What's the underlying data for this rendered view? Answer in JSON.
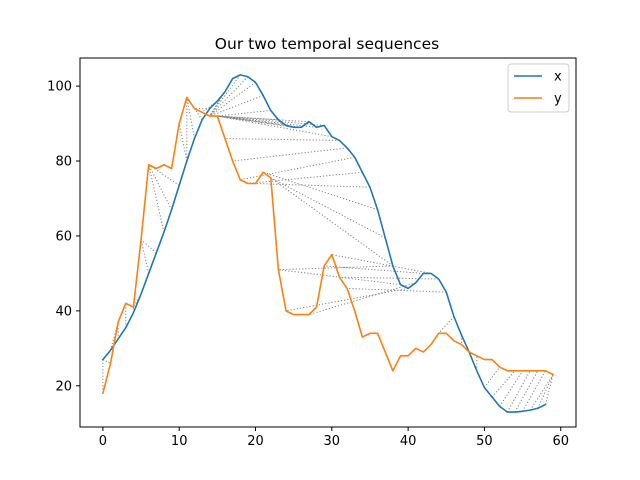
{
  "chart_data": {
    "type": "line",
    "title": "Our two temporal sequences",
    "xlabel": "",
    "ylabel": "",
    "xlim": [
      -3,
      62
    ],
    "ylim": [
      9,
      107.5
    ],
    "xticks": [
      0,
      10,
      20,
      30,
      40,
      50,
      60
    ],
    "yticks": [
      20,
      40,
      60,
      80,
      100
    ],
    "grid": false,
    "legend": "top-right",
    "colors": {
      "x": "#1f77b4",
      "y": "#ff7f0e",
      "alignment": "#808080"
    },
    "series": [
      {
        "name": "x",
        "x": [
          0,
          1,
          2,
          3,
          4,
          5,
          6,
          7,
          8,
          9,
          10,
          11,
          12,
          13,
          14,
          15,
          16,
          17,
          18,
          19,
          20,
          21,
          22,
          23,
          24,
          25,
          26,
          27,
          28,
          29,
          30,
          31,
          32,
          33,
          34,
          35,
          36,
          37,
          38,
          39,
          40,
          41,
          42,
          43,
          44,
          45,
          46,
          47,
          48,
          49,
          50,
          51,
          52,
          53,
          54,
          55,
          56,
          57,
          58
        ],
        "values": [
          27,
          29.5,
          32.5,
          35.5,
          39.5,
          44.5,
          50,
          55.5,
          61,
          67,
          73.5,
          80,
          86,
          91,
          94,
          96,
          98.5,
          102,
          103,
          102.5,
          101,
          97.5,
          93.5,
          91,
          89.5,
          89,
          89,
          90.5,
          89,
          89.5,
          86.5,
          85.5,
          83.5,
          81,
          77,
          73,
          67,
          59.5,
          52,
          47,
          46,
          47.5,
          50,
          50,
          48.5,
          45,
          38.5,
          33.5,
          29,
          24,
          19.5,
          17,
          14.5,
          13,
          13,
          13.2,
          13.5,
          14,
          15
        ]
      },
      {
        "name": "y",
        "x": [
          0,
          1,
          2,
          3,
          4,
          5,
          6,
          7,
          8,
          9,
          10,
          11,
          12,
          13,
          14,
          15,
          16,
          17,
          18,
          19,
          20,
          21,
          22,
          23,
          24,
          25,
          26,
          27,
          28,
          29,
          30,
          31,
          32,
          33,
          34,
          35,
          36,
          37,
          38,
          39,
          40,
          41,
          42,
          43,
          44,
          45,
          46,
          47,
          48,
          49,
          50,
          51,
          52,
          53,
          54,
          55,
          56,
          57,
          58,
          59
        ],
        "values": [
          18,
          26,
          37,
          42,
          41,
          59,
          79,
          78,
          79,
          78,
          90,
          97,
          94,
          93,
          92,
          92,
          86,
          80,
          75,
          74,
          74,
          77,
          75.5,
          51,
          40,
          39,
          39,
          39,
          41,
          52,
          55,
          49,
          46,
          40,
          33,
          34,
          34,
          29,
          24,
          28,
          28,
          30,
          29,
          31,
          34,
          34,
          32,
          31,
          29,
          28,
          27,
          27,
          25,
          24,
          24,
          24,
          24,
          24,
          24,
          23
        ]
      }
    ],
    "alignment_pairs": [
      [
        0,
        0
      ],
      [
        0,
        1
      ],
      [
        1,
        2
      ],
      [
        2,
        2
      ],
      [
        3,
        3
      ],
      [
        4,
        4
      ],
      [
        5,
        4
      ],
      [
        6,
        5
      ],
      [
        7,
        5
      ],
      [
        8,
        6
      ],
      [
        9,
        6
      ],
      [
        10,
        6
      ],
      [
        11,
        10
      ],
      [
        11,
        11
      ],
      [
        12,
        11
      ],
      [
        13,
        11
      ],
      [
        14,
        12
      ],
      [
        15,
        13
      ],
      [
        16,
        14
      ],
      [
        17,
        14
      ],
      [
        18,
        14
      ],
      [
        19,
        14
      ],
      [
        20,
        14
      ],
      [
        21,
        14
      ],
      [
        22,
        15
      ],
      [
        23,
        15
      ],
      [
        24,
        15
      ],
      [
        25,
        15
      ],
      [
        26,
        15
      ],
      [
        27,
        15
      ],
      [
        28,
        15
      ],
      [
        29,
        15
      ],
      [
        30,
        15
      ],
      [
        31,
        16
      ],
      [
        32,
        17
      ],
      [
        33,
        18
      ],
      [
        34,
        19
      ],
      [
        35,
        20
      ],
      [
        36,
        21
      ],
      [
        37,
        22
      ],
      [
        38,
        22
      ],
      [
        38,
        23
      ],
      [
        39,
        23
      ],
      [
        40,
        24
      ],
      [
        41,
        27
      ],
      [
        42,
        29
      ],
      [
        43,
        30
      ],
      [
        44,
        31
      ],
      [
        45,
        32
      ],
      [
        46,
        44
      ],
      [
        47,
        47
      ],
      [
        48,
        48
      ],
      [
        49,
        49
      ],
      [
        50,
        52
      ],
      [
        51,
        54
      ],
      [
        52,
        55
      ],
      [
        53,
        56
      ],
      [
        54,
        57
      ],
      [
        55,
        58
      ],
      [
        56,
        59
      ],
      [
        57,
        59
      ],
      [
        58,
        59
      ]
    ]
  }
}
